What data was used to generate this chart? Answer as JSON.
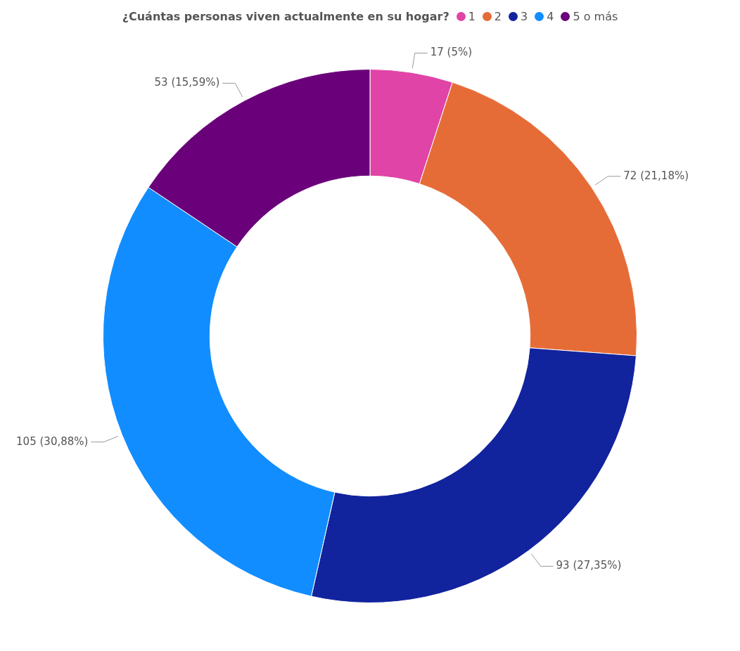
{
  "chart_data": {
    "type": "donut",
    "legend_title": "¿Cuántas personas viven actualmente en su hogar?",
    "legend": "top",
    "categories": [
      "1",
      "2",
      "3",
      "4",
      "5 o más"
    ],
    "values": [
      17,
      72,
      93,
      105,
      53
    ],
    "colors": [
      "#e044a7",
      "#e66c37",
      "#12239e",
      "#118dff",
      "#6b007b"
    ],
    "value_labels": [
      "17 (5%)",
      "72 (21,18%)",
      "93 (27,35%)",
      "105 (30,88%)",
      "53 (15,59%)"
    ]
  }
}
